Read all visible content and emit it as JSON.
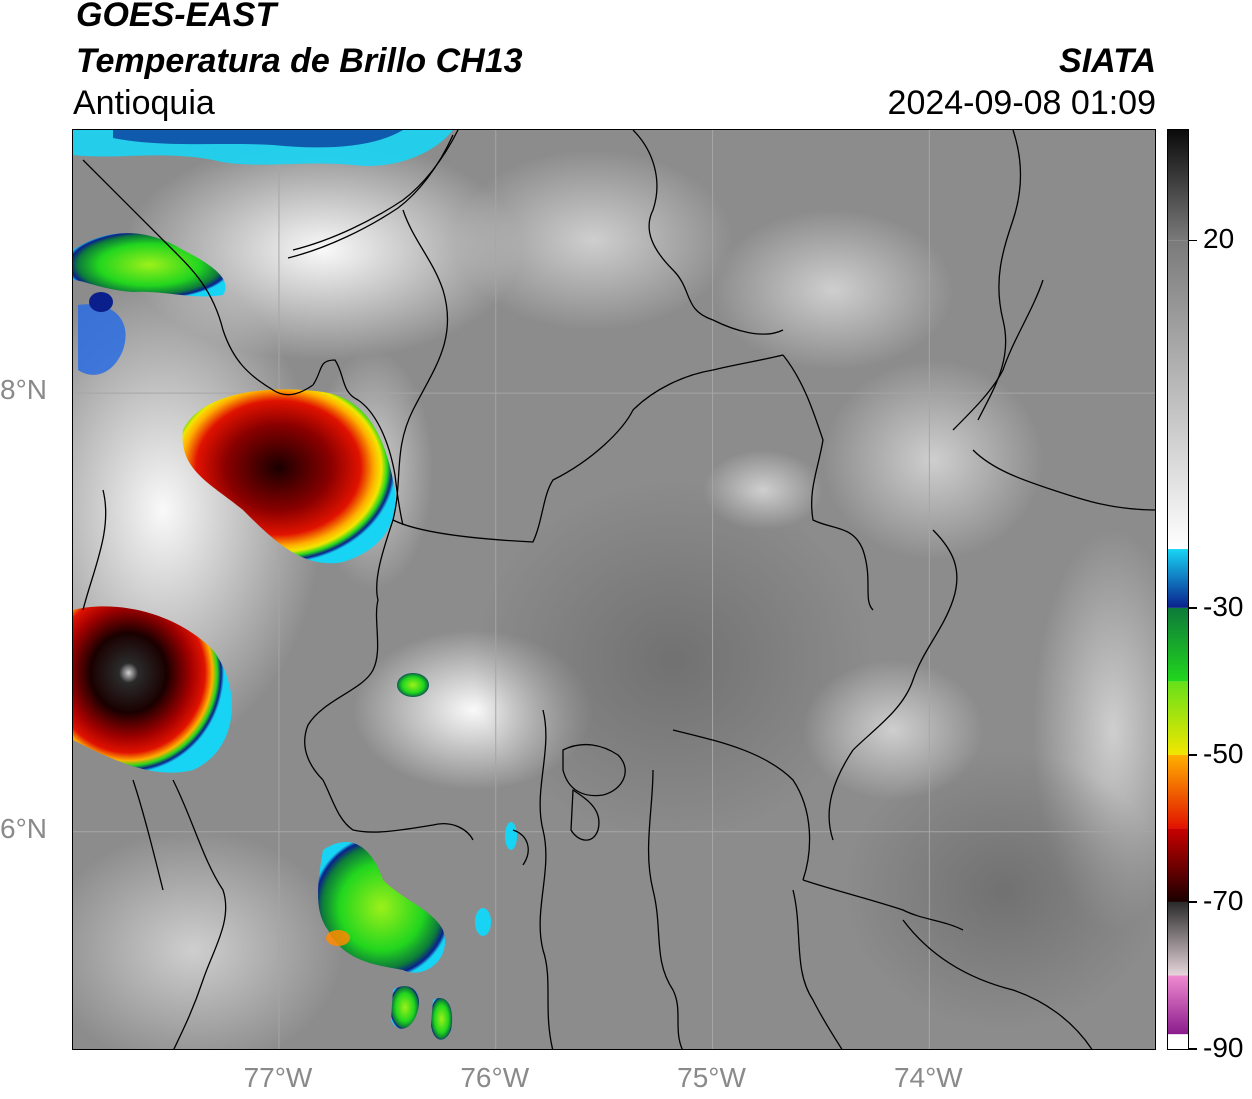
{
  "header": {
    "satellite": "GOES-EAST",
    "product": "Temperatura de Brillo CH13",
    "region": "Antioquia",
    "organization": "SIATA",
    "timestamp": "2024-09-08 01:09"
  },
  "map": {
    "lon_range": [
      -77.95,
      -72.95
    ],
    "lat_range": [
      5.0,
      9.2
    ],
    "lat_gridlines": [
      {
        "value": 8,
        "label": "8°N"
      },
      {
        "value": 6,
        "label": "6°N"
      }
    ],
    "lon_gridlines": [
      {
        "value": -77,
        "label": "77°W"
      },
      {
        "value": -76,
        "label": "76°W"
      },
      {
        "value": -75,
        "label": "75°W"
      },
      {
        "value": -74,
        "label": "74°W"
      }
    ],
    "background_color": "#8c8c8c",
    "gridline_color": "#a6a6a6",
    "border_color": "#000000"
  },
  "colorbar": {
    "range": [
      -90,
      35
    ],
    "ticks": [
      {
        "value": 20,
        "label": "20"
      },
      {
        "value": -30,
        "label": "-30"
      },
      {
        "value": -50,
        "label": "-50"
      },
      {
        "value": -70,
        "label": "-70"
      },
      {
        "value": -90,
        "label": "-90"
      }
    ],
    "segments": [
      {
        "from": 35,
        "to": 20,
        "from_color": "#0a0a0a",
        "to_color": "#7a7a7a"
      },
      {
        "from": 20,
        "to": -22,
        "from_color": "#7a7a7a",
        "to_color": "#ffffff"
      },
      {
        "from": -22,
        "to": -30,
        "from_color": "#18d4f4",
        "to_color": "#0a1f8c"
      },
      {
        "from": -30,
        "to": -40,
        "from_color": "#0d7a3a",
        "to_color": "#22d61e"
      },
      {
        "from": -40,
        "to": -50,
        "from_color": "#66e01a",
        "to_color": "#f2e600"
      },
      {
        "from": -50,
        "to": -60,
        "from_color": "#ffb000",
        "to_color": "#e11200"
      },
      {
        "from": -60,
        "to": -70,
        "from_color": "#c80000",
        "to_color": "#1a0000"
      },
      {
        "from": -70,
        "to": -80,
        "from_color": "#2a2a2a",
        "to_color": "#e6d6dc"
      },
      {
        "from": -80,
        "to": -88,
        "from_color": "#f08ad0",
        "to_color": "#8a1c8c"
      },
      {
        "from": -88,
        "to": -90,
        "from_color": "#ffffff",
        "to_color": "#ffffff"
      }
    ]
  }
}
